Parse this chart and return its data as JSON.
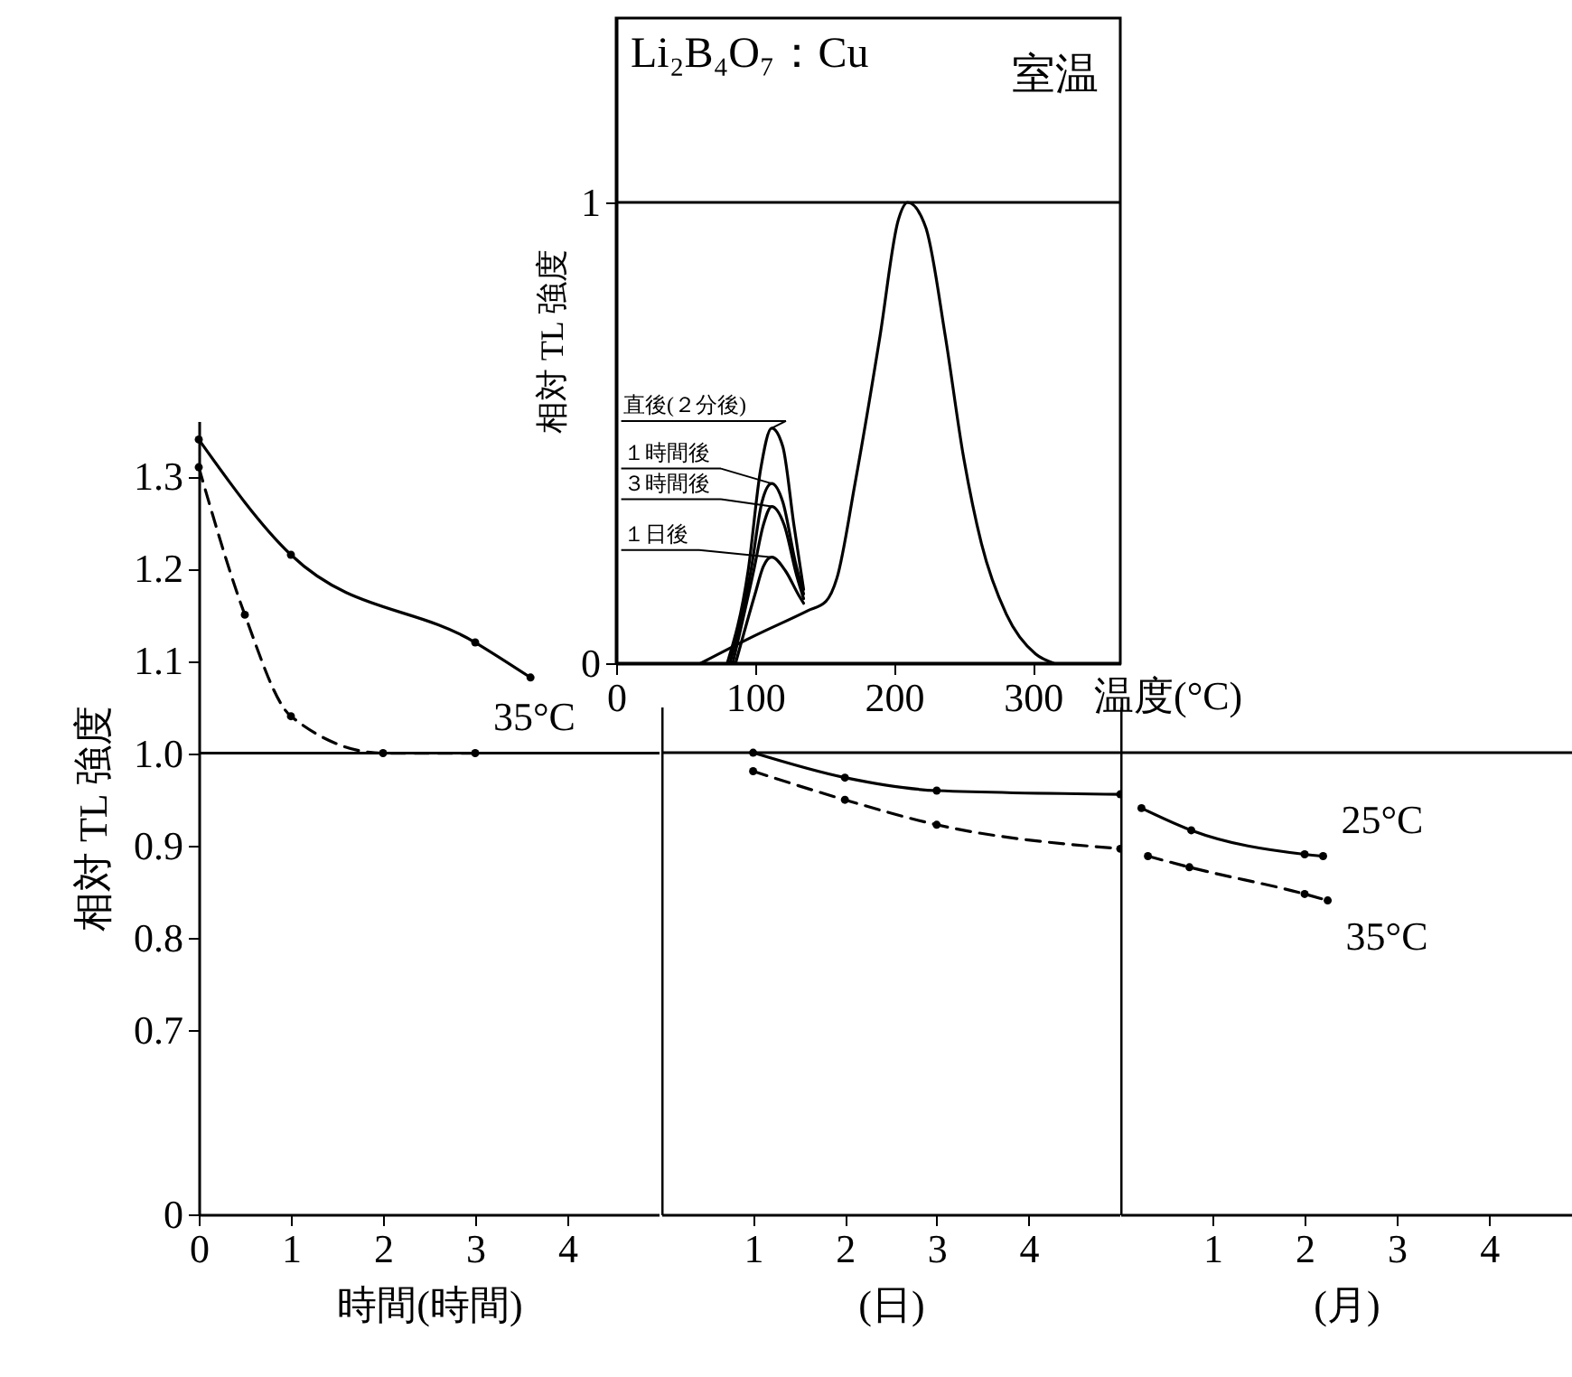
{
  "chart_data": [
    {
      "type": "line",
      "xlabel": "時間(時間)",
      "ylabel": "相対 TL 強度",
      "xlim": [
        0,
        5
      ],
      "xticks": [
        0,
        1,
        2,
        3,
        4
      ],
      "ylim": [
        0.5,
        1.36
      ],
      "yticks": [
        {
          "value": 0.5,
          "label": "0"
        },
        0.7,
        0.8,
        0.9,
        {
          "value": 1,
          "label": "1.0"
        },
        1.1,
        1.2,
        1.3
      ],
      "marker": "circle",
      "ref_lines": [
        {
          "axis": "y",
          "value": 1
        }
      ],
      "series": [
        {
          "color": "#000000",
          "line_style": "solid",
          "x": [
            0,
            1,
            3,
            3.6
          ],
          "values": [
            1.34,
            1.215,
            1.12,
            1.082
          ]
        },
        {
          "name": "35°C",
          "color": "#000000",
          "line_style": "dashed",
          "x": [
            0,
            0.5,
            1,
            2,
            3
          ],
          "values": [
            1.31,
            1.15,
            1.04,
            1.0,
            1.0
          ]
        }
      ]
    },
    {
      "type": "line",
      "xlabel": "(日)",
      "xlim": [
        0,
        5
      ],
      "xticks": [
        1,
        2,
        3,
        4
      ],
      "ylim": [
        0.5,
        1.05
      ],
      "yticks": [
        0.7,
        0.8,
        0.9,
        1
      ],
      "tick_labels": "x",
      "marker": "circle",
      "ref_lines": [
        {
          "axis": "y",
          "value": 1
        }
      ],
      "series": [
        {
          "color": "#000000",
          "line_style": "solid",
          "x": [
            1,
            2,
            3,
            5
          ],
          "values": [
            1.0,
            0.973,
            0.959,
            0.955
          ]
        },
        {
          "color": "#000000",
          "line_style": "dashed",
          "x": [
            1,
            2,
            3,
            5
          ],
          "values": [
            0.98,
            0.949,
            0.922,
            0.896
          ]
        }
      ]
    },
    {
      "type": "line",
      "xlabel": "(月)",
      "xlim": [
        0,
        4.9
      ],
      "xticks": [
        1,
        2,
        3,
        4
      ],
      "ylim": [
        0.5,
        1.05
      ],
      "yticks": [
        0.7,
        0.8,
        0.9,
        1
      ],
      "tick_labels": "x",
      "marker": "circle",
      "ref_lines": [
        {
          "axis": "y",
          "value": 1
        }
      ],
      "series": [
        {
          "name": "25°C",
          "color": "#000000",
          "line_style": "solid",
          "x": [
            0.23,
            0.77,
            2,
            2.2
          ],
          "values": [
            0.94,
            0.916,
            0.89,
            0.888
          ]
        },
        {
          "name": "35°C",
          "color": "#000000",
          "line_style": "dashed",
          "x": [
            0.3,
            0.75,
            2,
            2.25
          ],
          "values": [
            0.888,
            0.876,
            0.847,
            0.84
          ]
        }
      ]
    },
    {
      "type": "line",
      "xlabel": "温度(°C)",
      "ylabel": "相対 TL 強度",
      "xlim": [
        0,
        363
      ],
      "xticks": [
        0,
        100,
        200,
        300
      ],
      "ylim": [
        0,
        1.4
      ],
      "yticks": [
        0,
        1
      ],
      "marker": "none",
      "legend": "left",
      "ref_lines": [
        {
          "axis": "y",
          "value": 1
        }
      ],
      "annotations": [
        "Li₂B₄O₇：Cu",
        "室温"
      ],
      "series": [
        {
          "color": "#000000",
          "line_style": "solid",
          "x": [
            61,
            100,
            138,
            151,
            159,
            172,
            190,
            203,
            210,
            223,
            237,
            250,
            263,
            281,
            302,
            315
          ],
          "values": [
            0,
            0.06,
            0.114,
            0.134,
            0.185,
            0.39,
            0.71,
            0.96,
            1.0,
            0.945,
            0.71,
            0.45,
            0.26,
            0.106,
            0.02,
            0
          ]
        },
        {
          "name": "直後(２分後)",
          "color": "#000000",
          "line_style": "solid",
          "x": [
            80,
            95,
            104,
            112,
            120,
            128,
            135
          ],
          "values": [
            0,
            0.2,
            0.42,
            0.51,
            0.47,
            0.3,
            0.16
          ]
        },
        {
          "name": "１時間後",
          "color": "#000000",
          "line_style": "solid",
          "x": [
            82,
            97,
            105,
            112,
            120,
            129,
            135
          ],
          "values": [
            0,
            0.2,
            0.35,
            0.39,
            0.35,
            0.22,
            0.15
          ]
        },
        {
          "name": "３時間後",
          "color": "#000000",
          "line_style": "solid",
          "x": [
            84,
            99,
            106,
            112,
            121,
            130,
            135
          ],
          "values": [
            0,
            0.2,
            0.3,
            0.34,
            0.3,
            0.19,
            0.14
          ]
        },
        {
          "name": "１日後",
          "color": "#000000",
          "line_style": "solid",
          "x": [
            86,
            100,
            106,
            112,
            122,
            131,
            135
          ],
          "values": [
            0,
            0.15,
            0.21,
            0.23,
            0.2,
            0.15,
            0.13
          ]
        }
      ]
    }
  ]
}
